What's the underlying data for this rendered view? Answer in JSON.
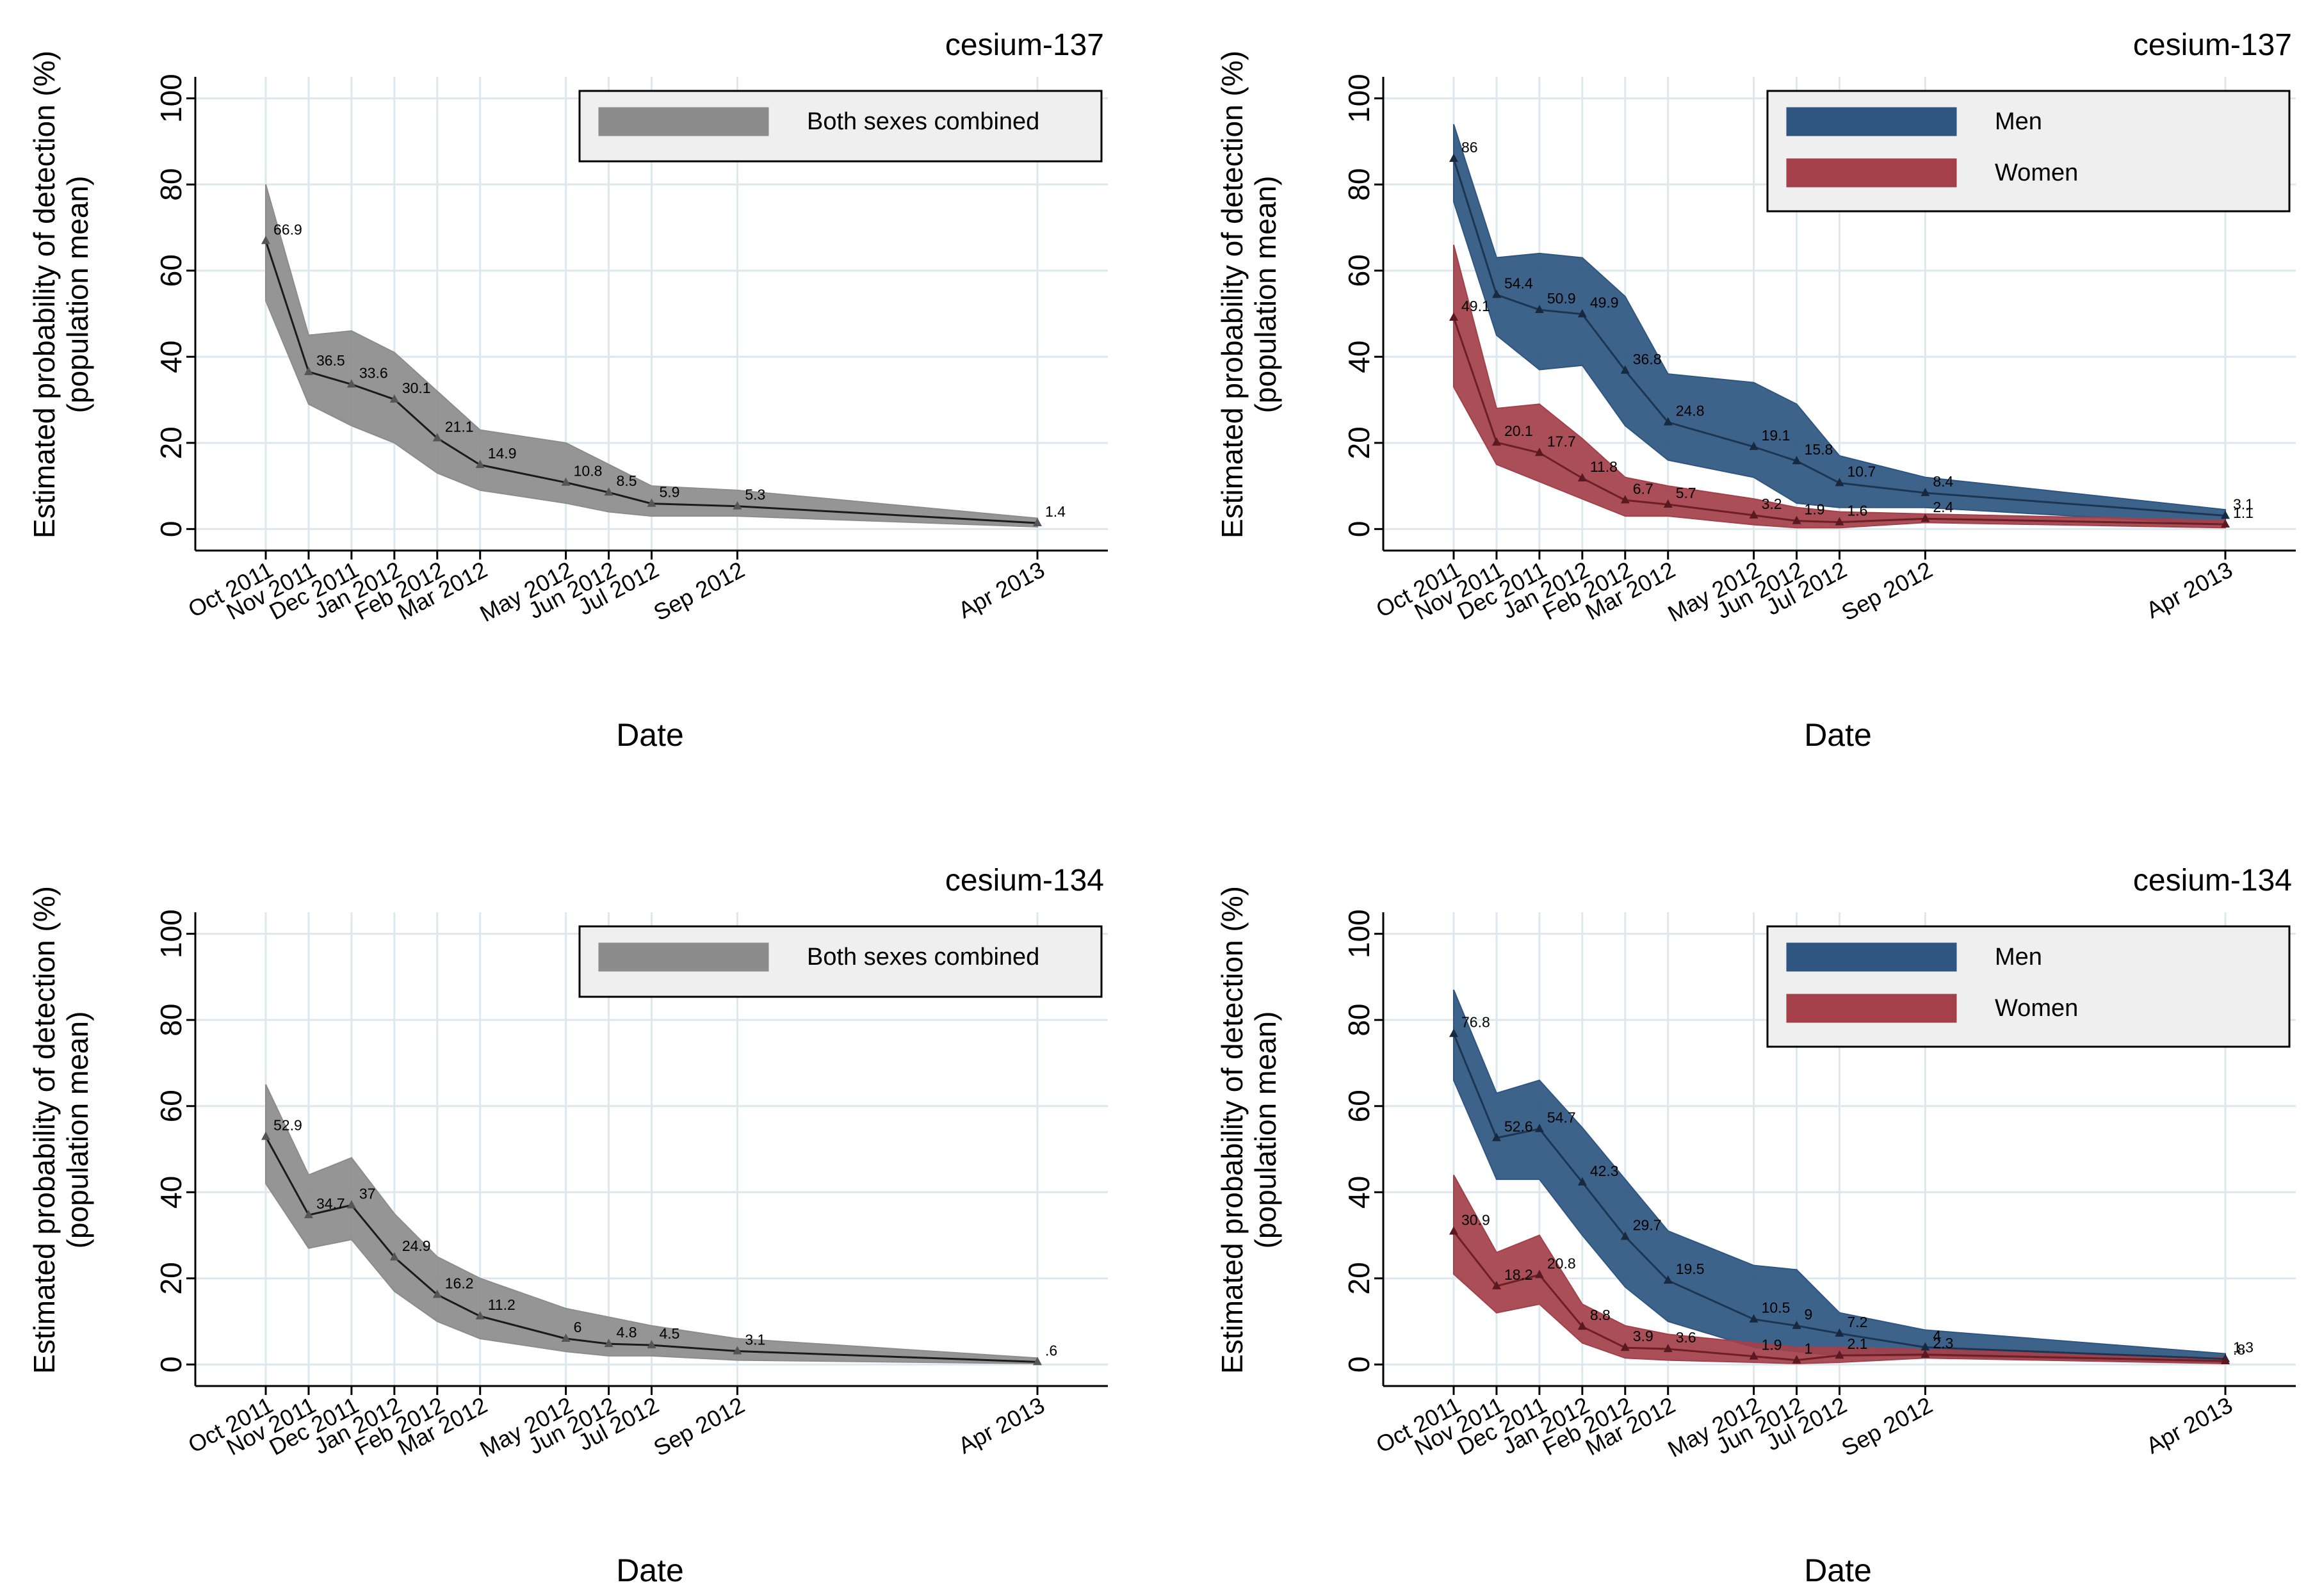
{
  "figure": {
    "ylabel_line1": "Estimated probability of detection (%)",
    "ylabel_line2": "(population mean)",
    "xlabel": "Date"
  },
  "colors": {
    "both_band": "#8c8c8c",
    "both_line": "#1a1a1a",
    "men_band": "#2e5681",
    "men_line": "#1c3552",
    "women_band": "#a3404a",
    "women_line": "#6e1f26",
    "grid": "#dde8ee",
    "legend_bg": "#efefef"
  },
  "chart_data": [
    {
      "type": "area",
      "title": "cesium-137",
      "xlabel": "Date",
      "ylabel": "Estimated probability of detection (%) (population mean)",
      "ylim": [
        -5,
        105
      ],
      "yticks": [
        0,
        20,
        40,
        60,
        80,
        100
      ],
      "categories": [
        "Oct 2011",
        "Nov 2011",
        "Dec 2011",
        "Jan 2012",
        "Feb 2012",
        "Mar 2012",
        "May 2012",
        "Jun 2012",
        "Jul 2012",
        "Sep 2012",
        "Apr 2013"
      ],
      "x": [
        0,
        1,
        2,
        3,
        4,
        5,
        7,
        8,
        9,
        11,
        18
      ],
      "legend_position": "top-right",
      "series": [
        {
          "name": "Both sexes combined",
          "color_key": "both",
          "values": [
            66.9,
            36.5,
            33.6,
            30.1,
            21.1,
            14.9,
            10.8,
            8.5,
            5.9,
            5.3,
            1.4
          ],
          "labels": [
            "66.9",
            "36.5",
            "33.6",
            "30.1",
            "21.1",
            "14.9",
            "10.8",
            "8.5",
            "5.9",
            "5.3",
            "1.4"
          ],
          "lower": [
            53,
            29,
            24,
            20,
            13,
            9,
            6,
            4,
            3,
            3,
            0.5
          ],
          "upper": [
            80,
            45,
            46,
            41,
            32,
            23,
            20,
            15,
            10,
            9,
            2.5
          ]
        }
      ]
    },
    {
      "type": "area",
      "title": "cesium-137",
      "xlabel": "Date",
      "ylabel": "Estimated probability of detection (%) (population mean)",
      "ylim": [
        -5,
        105
      ],
      "yticks": [
        0,
        20,
        40,
        60,
        80,
        100
      ],
      "categories": [
        "Oct 2011",
        "Nov 2011",
        "Dec 2011",
        "Jan 2012",
        "Feb 2012",
        "Mar 2012",
        "May 2012",
        "Jun 2012",
        "Jul 2012",
        "Sep 2012",
        "Apr 2013"
      ],
      "x": [
        0,
        1,
        2,
        3,
        4,
        5,
        7,
        8,
        9,
        11,
        18
      ],
      "legend_position": "top-right",
      "series": [
        {
          "name": "Men",
          "color_key": "men",
          "values": [
            86,
            54.4,
            50.9,
            49.9,
            36.8,
            24.8,
            19.1,
            15.8,
            10.7,
            8.4,
            3.1
          ],
          "labels": [
            "86",
            "54.4",
            "50.9",
            "49.9",
            "36.8",
            "24.8",
            "19.1",
            "15.8",
            "10.7",
            "8.4",
            "3.1"
          ],
          "lower": [
            76,
            45,
            37,
            38,
            24,
            16,
            12,
            6,
            5,
            5,
            1
          ],
          "upper": [
            94,
            63,
            64,
            63,
            54,
            36,
            34,
            29,
            17,
            12,
            4.5
          ]
        },
        {
          "name": "Women",
          "color_key": "women",
          "values": [
            49.1,
            20.1,
            17.7,
            11.8,
            6.7,
            5.7,
            3.2,
            1.9,
            1.6,
            2.4,
            1.1
          ],
          "labels": [
            "49.1",
            "20.1",
            "17.7",
            "11.8",
            "6.7",
            "5.7",
            "3.2",
            "1.9",
            "1.6",
            "2.4",
            "1.1"
          ],
          "lower": [
            33,
            15,
            11,
            7,
            3,
            3,
            1,
            0.3,
            0.3,
            1.5,
            0.3
          ],
          "upper": [
            66,
            28,
            29,
            21,
            12,
            10,
            7,
            5,
            4,
            3.5,
            2
          ]
        }
      ]
    },
    {
      "type": "area",
      "title": "cesium-134",
      "xlabel": "Date",
      "ylabel": "Estimated probability of detection (%) (population mean)",
      "ylim": [
        -5,
        105
      ],
      "yticks": [
        0,
        20,
        40,
        60,
        80,
        100
      ],
      "categories": [
        "Oct 2011",
        "Nov 2011",
        "Dec 2011",
        "Jan 2012",
        "Feb 2012",
        "Mar 2012",
        "May 2012",
        "Jun 2012",
        "Jul 2012",
        "Sep 2012",
        "Apr 2013"
      ],
      "x": [
        0,
        1,
        2,
        3,
        4,
        5,
        7,
        8,
        9,
        11,
        18
      ],
      "legend_position": "top-right",
      "series": [
        {
          "name": "Both sexes combined",
          "color_key": "both",
          "values": [
            52.9,
            34.7,
            37,
            24.9,
            16.2,
            11.2,
            6,
            4.8,
            4.5,
            3.1,
            0.6
          ],
          "labels": [
            "52.9",
            "34.7",
            "37",
            "24.9",
            "16.2",
            "11.2",
            "6",
            "4.8",
            "4.5",
            "3.1",
            ".6"
          ],
          "lower": [
            42,
            27,
            29,
            17,
            10,
            6,
            3,
            2,
            2,
            1,
            0.2
          ],
          "upper": [
            65,
            44,
            48,
            35,
            25,
            20,
            13,
            11,
            9,
            6,
            1.5
          ]
        }
      ]
    },
    {
      "type": "area",
      "title": "cesium-134",
      "xlabel": "Date",
      "ylabel": "Estimated probability of detection (%) (population mean)",
      "ylim": [
        -5,
        105
      ],
      "yticks": [
        0,
        20,
        40,
        60,
        80,
        100
      ],
      "categories": [
        "Oct 2011",
        "Nov 2011",
        "Dec 2011",
        "Jan 2012",
        "Feb 2012",
        "Mar 2012",
        "May 2012",
        "Jun 2012",
        "Jul 2012",
        "Sep 2012",
        "Apr 2013"
      ],
      "x": [
        0,
        1,
        2,
        3,
        4,
        5,
        7,
        8,
        9,
        11,
        18
      ],
      "legend_position": "top-right",
      "series": [
        {
          "name": "Men",
          "color_key": "men",
          "values": [
            76.8,
            52.6,
            54.7,
            42.3,
            29.7,
            19.5,
            10.5,
            9,
            7.2,
            4,
            1.3
          ],
          "labels": [
            "76.8",
            "52.6",
            "54.7",
            "42.3",
            "29.7",
            "19.5",
            "10.5",
            "9",
            "7.2",
            "4",
            "1.3"
          ],
          "lower": [
            66,
            43,
            43,
            30,
            18,
            10,
            4,
            3,
            2,
            2,
            0.5
          ],
          "upper": [
            87,
            63,
            66,
            55,
            43,
            31,
            23,
            22,
            12,
            8,
            2.5
          ]
        },
        {
          "name": "Women",
          "color_key": "women",
          "values": [
            30.9,
            18.2,
            20.8,
            8.8,
            3.9,
            3.6,
            1.9,
            1,
            2.1,
            2.3,
            0.8
          ],
          "labels": [
            "30.9",
            "18.2",
            "20.8",
            "8.8",
            "3.9",
            "3.6",
            "1.9",
            "1",
            "2.1",
            "2.3",
            ".8"
          ],
          "lower": [
            21,
            12,
            14,
            5,
            1.5,
            1,
            0.5,
            0.2,
            0.5,
            1.5,
            0.2
          ],
          "upper": [
            44,
            26,
            30,
            14,
            9,
            7,
            5,
            4,
            4,
            3.5,
            1.5
          ]
        }
      ]
    }
  ]
}
